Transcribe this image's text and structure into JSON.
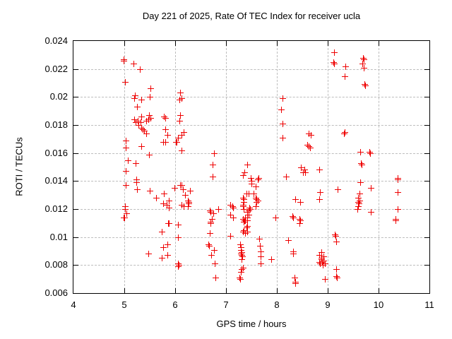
{
  "chart_data": {
    "type": "scatter",
    "title": "Day 221 of 2025, Rate Of TEC Index for receiver ucla",
    "xlabel": "GPS time / hours",
    "ylabel": "ROTI / TECUs",
    "xlim": [
      4,
      11
    ],
    "ylim": [
      0.006,
      0.024
    ],
    "xtick_values": [
      4,
      5,
      6,
      7,
      8,
      9,
      10,
      11
    ],
    "xtick_labels": [
      "4",
      "5",
      "6",
      "7",
      "8",
      "9",
      "10",
      "11"
    ],
    "ytick_values": [
      0.006,
      0.008,
      0.01,
      0.012,
      0.014,
      0.016,
      0.018,
      0.02,
      0.022,
      0.024
    ],
    "ytick_labels": [
      "0.006",
      "0.008",
      "0.01",
      "0.012",
      "0.014",
      "0.016",
      "0.018",
      "0.02",
      "0.022",
      "0.024"
    ],
    "grid": true,
    "legend": "none",
    "marker": "plus",
    "marker_color": "#ee0000",
    "grid_color": "#bdbdbd",
    "axis_color": "#000000",
    "background_color": "#ffffff",
    "series": [
      {
        "name": "ROTI",
        "points": [
          [
            4.98,
            0.0227
          ],
          [
            4.99,
            0.0226
          ],
          [
            5.18,
            0.0224
          ],
          [
            5.3,
            0.022
          ],
          [
            5.02,
            0.0211
          ],
          [
            5.52,
            0.0206
          ],
          [
            5.21,
            0.0201
          ],
          [
            5.19,
            0.0199
          ],
          [
            5.5,
            0.02
          ],
          [
            5.33,
            0.0198
          ],
          [
            5.25,
            0.0193
          ],
          [
            5.33,
            0.0186
          ],
          [
            5.49,
            0.0187
          ],
          [
            5.52,
            0.0185
          ],
          [
            5.78,
            0.0186
          ],
          [
            5.8,
            0.0185
          ],
          [
            5.47,
            0.0184
          ],
          [
            5.2,
            0.0184
          ],
          [
            5.26,
            0.0183
          ],
          [
            5.32,
            0.0182
          ],
          [
            5.43,
            0.0183
          ],
          [
            5.22,
            0.0182
          ],
          [
            5.28,
            0.018
          ],
          [
            5.33,
            0.0178
          ],
          [
            5.36,
            0.0177
          ],
          [
            5.39,
            0.0176
          ],
          [
            5.43,
            0.0174
          ],
          [
            5.8,
            0.0177
          ],
          [
            5.85,
            0.0173
          ],
          [
            5.76,
            0.0168
          ],
          [
            5.8,
            0.0168
          ],
          [
            5.03,
            0.0169
          ],
          [
            5.03,
            0.0164
          ],
          [
            5.34,
            0.0165
          ],
          [
            5.49,
            0.0159
          ],
          [
            5.07,
            0.0155
          ],
          [
            5.22,
            0.0153
          ],
          [
            5.03,
            0.0147
          ],
          [
            5.24,
            0.0141
          ],
          [
            5.24,
            0.0139
          ],
          [
            5.03,
            0.0137
          ],
          [
            5.25,
            0.0134
          ],
          [
            5.5,
            0.0133
          ],
          [
            5.62,
            0.0128
          ],
          [
            5.78,
            0.0131
          ],
          [
            5.76,
            0.0124
          ],
          [
            5.87,
            0.0126
          ],
          [
            5.84,
            0.0123
          ],
          [
            5.87,
            0.0121
          ],
          [
            5.01,
            0.0122
          ],
          [
            5.01,
            0.012
          ],
          [
            5.04,
            0.0117
          ],
          [
            4.98,
            0.0114
          ],
          [
            5.0,
            0.0114
          ],
          [
            5.86,
            0.011
          ],
          [
            5.88,
            0.011
          ],
          [
            5.73,
            0.0104
          ],
          [
            5.85,
            0.0095
          ],
          [
            5.76,
            0.0093
          ],
          [
            5.47,
            0.0088
          ],
          [
            5.85,
            0.0087
          ],
          [
            5.73,
            0.0085
          ],
          [
            6.1,
            0.0203
          ],
          [
            6.12,
            0.0199
          ],
          [
            6.08,
            0.0198
          ],
          [
            6.1,
            0.0187
          ],
          [
            6.09,
            0.0183
          ],
          [
            6.17,
            0.0175
          ],
          [
            6.13,
            0.0173
          ],
          [
            6.06,
            0.0171
          ],
          [
            6.01,
            0.0168
          ],
          [
            6.03,
            0.0168
          ],
          [
            6.13,
            0.0162
          ],
          [
            5.99,
            0.0135
          ],
          [
            6.1,
            0.0137
          ],
          [
            6.13,
            0.0137
          ],
          [
            6.15,
            0.0134
          ],
          [
            6.29,
            0.0133
          ],
          [
            6.19,
            0.013
          ],
          [
            6.25,
            0.0126
          ],
          [
            6.27,
            0.0125
          ],
          [
            6.27,
            0.0124
          ],
          [
            6.12,
            0.0123
          ],
          [
            6.25,
            0.0122
          ],
          [
            6.16,
            0.0122
          ],
          [
            6.05,
            0.0109
          ],
          [
            6.05,
            0.01
          ],
          [
            6.05,
            0.0081
          ],
          [
            6.07,
            0.008
          ],
          [
            6.06,
            0.0079
          ],
          [
            6.77,
            0.016
          ],
          [
            6.74,
            0.0152
          ],
          [
            6.74,
            0.0143
          ],
          [
            6.85,
            0.012
          ],
          [
            6.68,
            0.0119
          ],
          [
            6.7,
            0.0118
          ],
          [
            6.75,
            0.0117
          ],
          [
            6.72,
            0.0113
          ],
          [
            6.69,
            0.0111
          ],
          [
            6.69,
            0.011
          ],
          [
            6.68,
            0.0103
          ],
          [
            6.65,
            0.0095
          ],
          [
            6.66,
            0.0094
          ],
          [
            6.77,
            0.0091
          ],
          [
            6.71,
            0.0087
          ],
          [
            6.78,
            0.0081
          ],
          [
            6.79,
            0.0071
          ],
          [
            7.42,
            0.0152
          ],
          [
            7.36,
            0.0146
          ],
          [
            7.34,
            0.0144
          ],
          [
            7.48,
            0.0142
          ],
          [
            7.64,
            0.0142
          ],
          [
            7.62,
            0.0141
          ],
          [
            7.5,
            0.014
          ],
          [
            7.5,
            0.0138
          ],
          [
            7.58,
            0.0136
          ],
          [
            7.4,
            0.0131
          ],
          [
            7.44,
            0.0131
          ],
          [
            7.54,
            0.0131
          ],
          [
            7.33,
            0.0128
          ],
          [
            7.58,
            0.0128
          ],
          [
            7.35,
            0.0127
          ],
          [
            7.6,
            0.0127
          ],
          [
            7.62,
            0.0126
          ],
          [
            7.35,
            0.0125
          ],
          [
            7.6,
            0.0125
          ],
          [
            7.09,
            0.0123
          ],
          [
            7.33,
            0.0123
          ],
          [
            7.12,
            0.0122
          ],
          [
            7.34,
            0.0122
          ],
          [
            7.58,
            0.0122
          ],
          [
            7.14,
            0.0121
          ],
          [
            7.46,
            0.0121
          ],
          [
            7.35,
            0.012
          ],
          [
            7.47,
            0.012
          ],
          [
            7.45,
            0.0119
          ],
          [
            7.42,
            0.0118
          ],
          [
            7.08,
            0.0116
          ],
          [
            7.45,
            0.0116
          ],
          [
            7.14,
            0.0114
          ],
          [
            7.38,
            0.0114
          ],
          [
            7.41,
            0.0114
          ],
          [
            7.97,
            0.0114
          ],
          [
            7.33,
            0.0113
          ],
          [
            7.36,
            0.0112
          ],
          [
            7.38,
            0.0112
          ],
          [
            7.41,
            0.0112
          ],
          [
            7.35,
            0.0111
          ],
          [
            7.41,
            0.0108
          ],
          [
            7.4,
            0.0107
          ],
          [
            7.35,
            0.0105
          ],
          [
            7.33,
            0.0104
          ],
          [
            7.42,
            0.0104
          ],
          [
            7.37,
            0.0103
          ],
          [
            7.09,
            0.0101
          ],
          [
            7.65,
            0.0099
          ],
          [
            7.28,
            0.0095
          ],
          [
            7.67,
            0.0094
          ],
          [
            7.29,
            0.0093
          ],
          [
            7.29,
            0.0091
          ],
          [
            7.68,
            0.009
          ],
          [
            7.3,
            0.0089
          ],
          [
            7.29,
            0.0088
          ],
          [
            7.3,
            0.0087
          ],
          [
            7.32,
            0.0086
          ],
          [
            7.68,
            0.0086
          ],
          [
            7.31,
            0.0084
          ],
          [
            7.89,
            0.0084
          ],
          [
            7.68,
            0.0081
          ],
          [
            7.34,
            0.0078
          ],
          [
            7.3,
            0.0077
          ],
          [
            7.29,
            0.0075
          ],
          [
            7.26,
            0.0071
          ],
          [
            7.28,
            0.007
          ],
          [
            8.11,
            0.0199
          ],
          [
            8.08,
            0.0191
          ],
          [
            8.11,
            0.0181
          ],
          [
            8.63,
            0.0174
          ],
          [
            8.66,
            0.0173
          ],
          [
            8.11,
            0.0171
          ],
          [
            8.6,
            0.0166
          ],
          [
            8.63,
            0.0165
          ],
          [
            8.65,
            0.0164
          ],
          [
            8.47,
            0.015
          ],
          [
            8.54,
            0.0148
          ],
          [
            8.83,
            0.0148
          ],
          [
            8.52,
            0.0146
          ],
          [
            8.55,
            0.0146
          ],
          [
            8.18,
            0.0143
          ],
          [
            8.85,
            0.0132
          ],
          [
            8.36,
            0.0127
          ],
          [
            8.84,
            0.0127
          ],
          [
            8.46,
            0.0125
          ],
          [
            8.3,
            0.0115
          ],
          [
            8.32,
            0.0114
          ],
          [
            8.44,
            0.0113
          ],
          [
            8.46,
            0.0112
          ],
          [
            8.45,
            0.011
          ],
          [
            8.22,
            0.0098
          ],
          [
            8.32,
            0.009
          ],
          [
            8.87,
            0.0089
          ],
          [
            8.32,
            0.0088
          ],
          [
            8.84,
            0.0087
          ],
          [
            8.91,
            0.0086
          ],
          [
            8.87,
            0.0085
          ],
          [
            8.88,
            0.0084
          ],
          [
            8.92,
            0.0083
          ],
          [
            8.83,
            0.0082
          ],
          [
            8.89,
            0.0082
          ],
          [
            8.94,
            0.0081
          ],
          [
            8.85,
            0.0081
          ],
          [
            8.9,
            0.008
          ],
          [
            8.35,
            0.0071
          ],
          [
            8.95,
            0.007
          ],
          [
            8.36,
            0.0068
          ],
          [
            8.36,
            0.0067
          ],
          [
            9.13,
            0.0232
          ],
          [
            9.11,
            0.0225
          ],
          [
            9.13,
            0.0224
          ],
          [
            9.35,
            0.0222
          ],
          [
            9.69,
            0.0228
          ],
          [
            9.71,
            0.0227
          ],
          [
            9.68,
            0.0224
          ],
          [
            9.71,
            0.0221
          ],
          [
            9.33,
            0.0215
          ],
          [
            9.72,
            0.0209
          ],
          [
            9.74,
            0.0208
          ],
          [
            9.34,
            0.0175
          ],
          [
            9.32,
            0.0174
          ],
          [
            9.64,
            0.0161
          ],
          [
            9.82,
            0.0161
          ],
          [
            9.84,
            0.016
          ],
          [
            9.65,
            0.0153
          ],
          [
            9.66,
            0.0152
          ],
          [
            9.64,
            0.0139
          ],
          [
            9.85,
            0.0135
          ],
          [
            9.19,
            0.0134
          ],
          [
            9.63,
            0.0131
          ],
          [
            9.6,
            0.0128
          ],
          [
            9.62,
            0.0126
          ],
          [
            9.6,
            0.0125
          ],
          [
            9.61,
            0.0124
          ],
          [
            9.6,
            0.0122
          ],
          [
            9.58,
            0.012
          ],
          [
            9.85,
            0.0118
          ],
          [
            9.14,
            0.0102
          ],
          [
            9.15,
            0.0101
          ],
          [
            9.16,
            0.0097
          ],
          [
            9.17,
            0.0077
          ],
          [
            9.17,
            0.0072
          ],
          [
            9.18,
            0.0071
          ],
          [
            10.37,
            0.0142
          ],
          [
            10.38,
            0.0141
          ],
          [
            10.38,
            0.0132
          ],
          [
            10.38,
            0.012
          ],
          [
            10.34,
            0.0113
          ],
          [
            10.34,
            0.0112
          ]
        ]
      }
    ]
  }
}
